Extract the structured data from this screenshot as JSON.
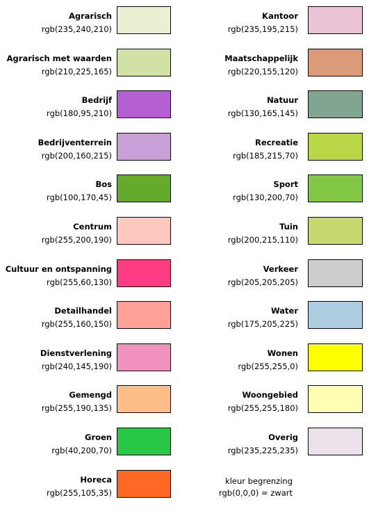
{
  "legend_left": [
    {
      "name": "Agrarisch",
      "rgb": "rgb(235,240,210)",
      "color": "#EBF0D2"
    },
    {
      "name": "Agrarisch met waarden",
      "rgb": "rgb(210,225,165)",
      "color": "#D2E1A5"
    },
    {
      "name": "Bedrijf",
      "rgb": "rgb(180,95,210)",
      "color": "#B45FD2"
    },
    {
      "name": "Bedrijventerrein",
      "rgb": "rgb(200,160,215)",
      "color": "#C8A0D7"
    },
    {
      "name": "Bos",
      "rgb": "rgb(100,170,45)",
      "color": "#64AA2D"
    },
    {
      "name": "Centrum",
      "rgb": "rgb(255,200,190)",
      "color": "#FFC8BE"
    },
    {
      "name": "Cultuur en ontspanning",
      "rgb": "rgb(255,60,130)",
      "color": "#FF3C82"
    },
    {
      "name": "Detailhandel",
      "rgb": "rgb(255,160,150)",
      "color": "#FFA096"
    },
    {
      "name": "Dienstverlening",
      "rgb": "rgb(240,145,190)",
      "color": "#F091BE"
    },
    {
      "name": "Gemengd",
      "rgb": "rgb(255,190,135)",
      "color": "#FFBE87"
    },
    {
      "name": "Groen",
      "rgb": "rgb(40,200,70)",
      "color": "#28C846"
    },
    {
      "name": "Horeca",
      "rgb": "rgb(255,105,35)",
      "color": "#FF6923"
    }
  ],
  "legend_right": [
    {
      "name": "Kantoor",
      "rgb": "rgb(235,195,215)",
      "color": "#EBC3D7"
    },
    {
      "name": "Maatschappelijk",
      "rgb": "rgb(220,155,120)",
      "color": "#DC9B78"
    },
    {
      "name": "Natuur",
      "rgb": "rgb(130,165,145)",
      "color": "#82A591"
    },
    {
      "name": "Recreatie",
      "rgb": "rgb(185,215,70)",
      "color": "#B9D746"
    },
    {
      "name": "Sport",
      "rgb": "rgb(130,200,70)",
      "color": "#82C846"
    },
    {
      "name": "Tuin",
      "rgb": "rgb(200,215,110)",
      "color": "#C8D76E"
    },
    {
      "name": "Verkeer",
      "rgb": "rgb(205,205,205)",
      "color": "#CDCDCD"
    },
    {
      "name": "Water",
      "rgb": "rgb(175,205,225)",
      "color": "#AFCDE1"
    },
    {
      "name": "Wonen",
      "rgb": "rgb(255,255,0)",
      "color": "#FFFF00"
    },
    {
      "name": "Woongebied",
      "rgb": "rgb(255,255,180)",
      "color": "#FFFFB4"
    },
    {
      "name": "Overig",
      "rgb": "rgb(235,225,235)",
      "color": "#EBE1EB"
    }
  ],
  "note": {
    "line1": "kleur begrenzing",
    "line2": "rgb(0,0,0) = zwart"
  }
}
